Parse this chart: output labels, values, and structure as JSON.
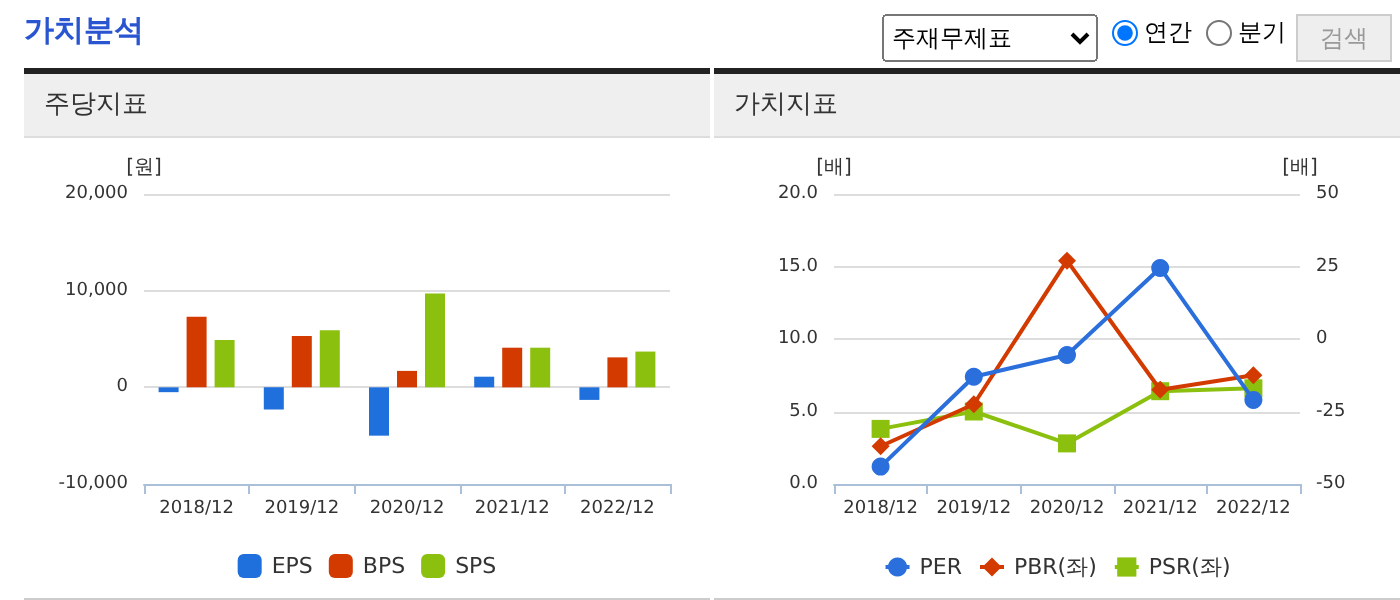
{
  "chart_data": [
    {
      "type": "bar",
      "title": "주당지표",
      "ylabel": "[원]",
      "annotations": [
        "가치분석",
        "주재무제표",
        "연간",
        "분기",
        "검색"
      ],
      "categories": [
        "2018/12",
        "2019/12",
        "2020/12",
        "2021/12",
        "2022/12"
      ],
      "series": [
        {
          "name": "EPS",
          "color": "#1f6fdc",
          "values": [
            -500,
            -2300,
            -5000,
            1100,
            -1300
          ]
        },
        {
          "name": "BPS",
          "color": "#d33a00",
          "values": [
            7300,
            5300,
            1700,
            4100,
            3100
          ]
        },
        {
          "name": "SPS",
          "color": "#8cc00e",
          "values": [
            4900,
            5900,
            9700,
            4100,
            3700
          ]
        }
      ],
      "ylim": [
        -10000,
        20000
      ],
      "yticks": [
        {
          "value": -10000,
          "label": "-10,000"
        },
        {
          "value": 0,
          "label": "0"
        },
        {
          "value": 10000,
          "label": "10,000"
        },
        {
          "value": 20000,
          "label": "20,000"
        }
      ],
      "grid": "y",
      "legend": "bottom"
    },
    {
      "type": "line",
      "title": "가치지표",
      "ylabel": "[배]",
      "y2label": "[배]",
      "categories": [
        "2018/12",
        "2019/12",
        "2020/12",
        "2021/12",
        "2022/12"
      ],
      "series": [
        {
          "name": "PER",
          "color": "#2a6fdb",
          "axis": "y2",
          "marker": "circle",
          "values": [
            -44,
            -13,
            -5.5,
            24.5,
            -21
          ]
        },
        {
          "name": "PBR(좌)",
          "color": "#d33a00",
          "marker": "diamond",
          "values": [
            2.6,
            5.5,
            15.4,
            6.5,
            7.5
          ]
        },
        {
          "name": "PSR(좌)",
          "color": "#8cc00e",
          "marker": "square",
          "values": [
            3.8,
            5.0,
            2.8,
            6.4,
            6.6
          ]
        }
      ],
      "ylim": [
        0,
        20
      ],
      "yticks": [
        {
          "value": 0,
          "label": "0.0"
        },
        {
          "value": 5,
          "label": "5.0"
        },
        {
          "value": 10,
          "label": "10.0"
        },
        {
          "value": 15,
          "label": "15.0"
        },
        {
          "value": 20,
          "label": "20.0"
        }
      ],
      "y2lim": [
        -50,
        50
      ],
      "y2ticks": [
        -50,
        -25,
        0,
        25,
        50
      ],
      "grid": "y",
      "legend": "bottom"
    }
  ]
}
